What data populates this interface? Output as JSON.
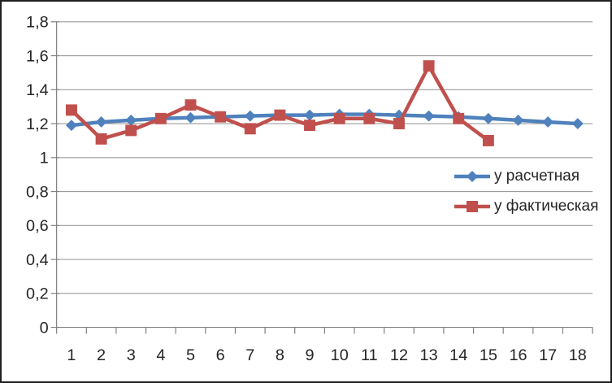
{
  "chart_data": {
    "type": "line",
    "title": "",
    "x_labels": [
      "1",
      "2",
      "3",
      "4",
      "5",
      "6",
      "7",
      "8",
      "9",
      "10",
      "11",
      "12",
      "13",
      "14",
      "15",
      "16",
      "17",
      "18"
    ],
    "y_tick_labels_top_to_bottom": [
      "1,8",
      "1,6",
      "1,4",
      "1,2",
      "1",
      "0,8",
      "0,6",
      "0,4",
      "0,2",
      "0"
    ],
    "ylim": [
      0,
      1.8
    ],
    "y_tick_step": 0.2,
    "grid": true,
    "legend_position": "middle-right",
    "series": [
      {
        "name": "у расчетная",
        "color": "#4F81BD",
        "marker": "diamond",
        "values": [
          1.19,
          1.21,
          1.22,
          1.23,
          1.235,
          1.24,
          1.245,
          1.25,
          1.25,
          1.255,
          1.255,
          1.25,
          1.245,
          1.24,
          1.23,
          1.22,
          1.21,
          1.2
        ]
      },
      {
        "name": "у фактическая",
        "color": "#C0504D",
        "marker": "square",
        "values": [
          1.28,
          1.11,
          1.16,
          1.23,
          1.31,
          1.24,
          1.17,
          1.25,
          1.19,
          1.23,
          1.23,
          1.2,
          1.54,
          1.23,
          1.1,
          null,
          null,
          null
        ]
      }
    ]
  },
  "colors": {
    "gridline": "#9c9c9c",
    "axis": "#808080",
    "axis_text": "#262626",
    "background": "#ffffff",
    "frame_border": "#1f1f1f"
  }
}
